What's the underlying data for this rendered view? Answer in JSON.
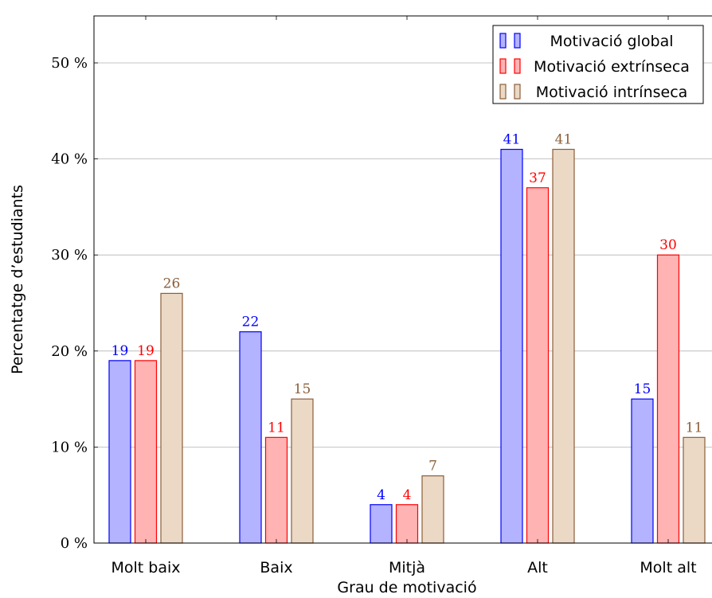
{
  "chart_data": {
    "type": "bar",
    "title": "",
    "xlabel": "Grau de motivació",
    "ylabel": "Percentatge d’estudiants",
    "categories": [
      "Molt baix",
      "Baix",
      "Mitjà",
      "Alt",
      "Molt alt"
    ],
    "y_ticks": [
      {
        "value": 0,
        "label": "0 %"
      },
      {
        "value": 10,
        "label": "10 %"
      },
      {
        "value": 20,
        "label": "20 %"
      },
      {
        "value": 30,
        "label": "30 %"
      },
      {
        "value": 40,
        "label": "40 %"
      },
      {
        "value": 50,
        "label": "50 %"
      }
    ],
    "ylim": [
      0,
      50
    ],
    "grid": "horizontal",
    "legend_position": "top-right",
    "series": [
      {
        "name": "Motivació global",
        "values": [
          19,
          22,
          4,
          41,
          15
        ],
        "fill": "#b3b3ff",
        "stroke": "#0000ff",
        "label_color": "#0000ff"
      },
      {
        "name": "Motivació extrínseca",
        "values": [
          19,
          11,
          4,
          37,
          30
        ],
        "fill": "#ffb3b3",
        "stroke": "#ff0000",
        "label_color": "#ff0000"
      },
      {
        "name": "Motivació intrínseca",
        "values": [
          26,
          15,
          7,
          41,
          11
        ],
        "fill": "#ebd9c6",
        "stroke": "#8c5e38",
        "label_color": "#8c5e38"
      }
    ]
  }
}
